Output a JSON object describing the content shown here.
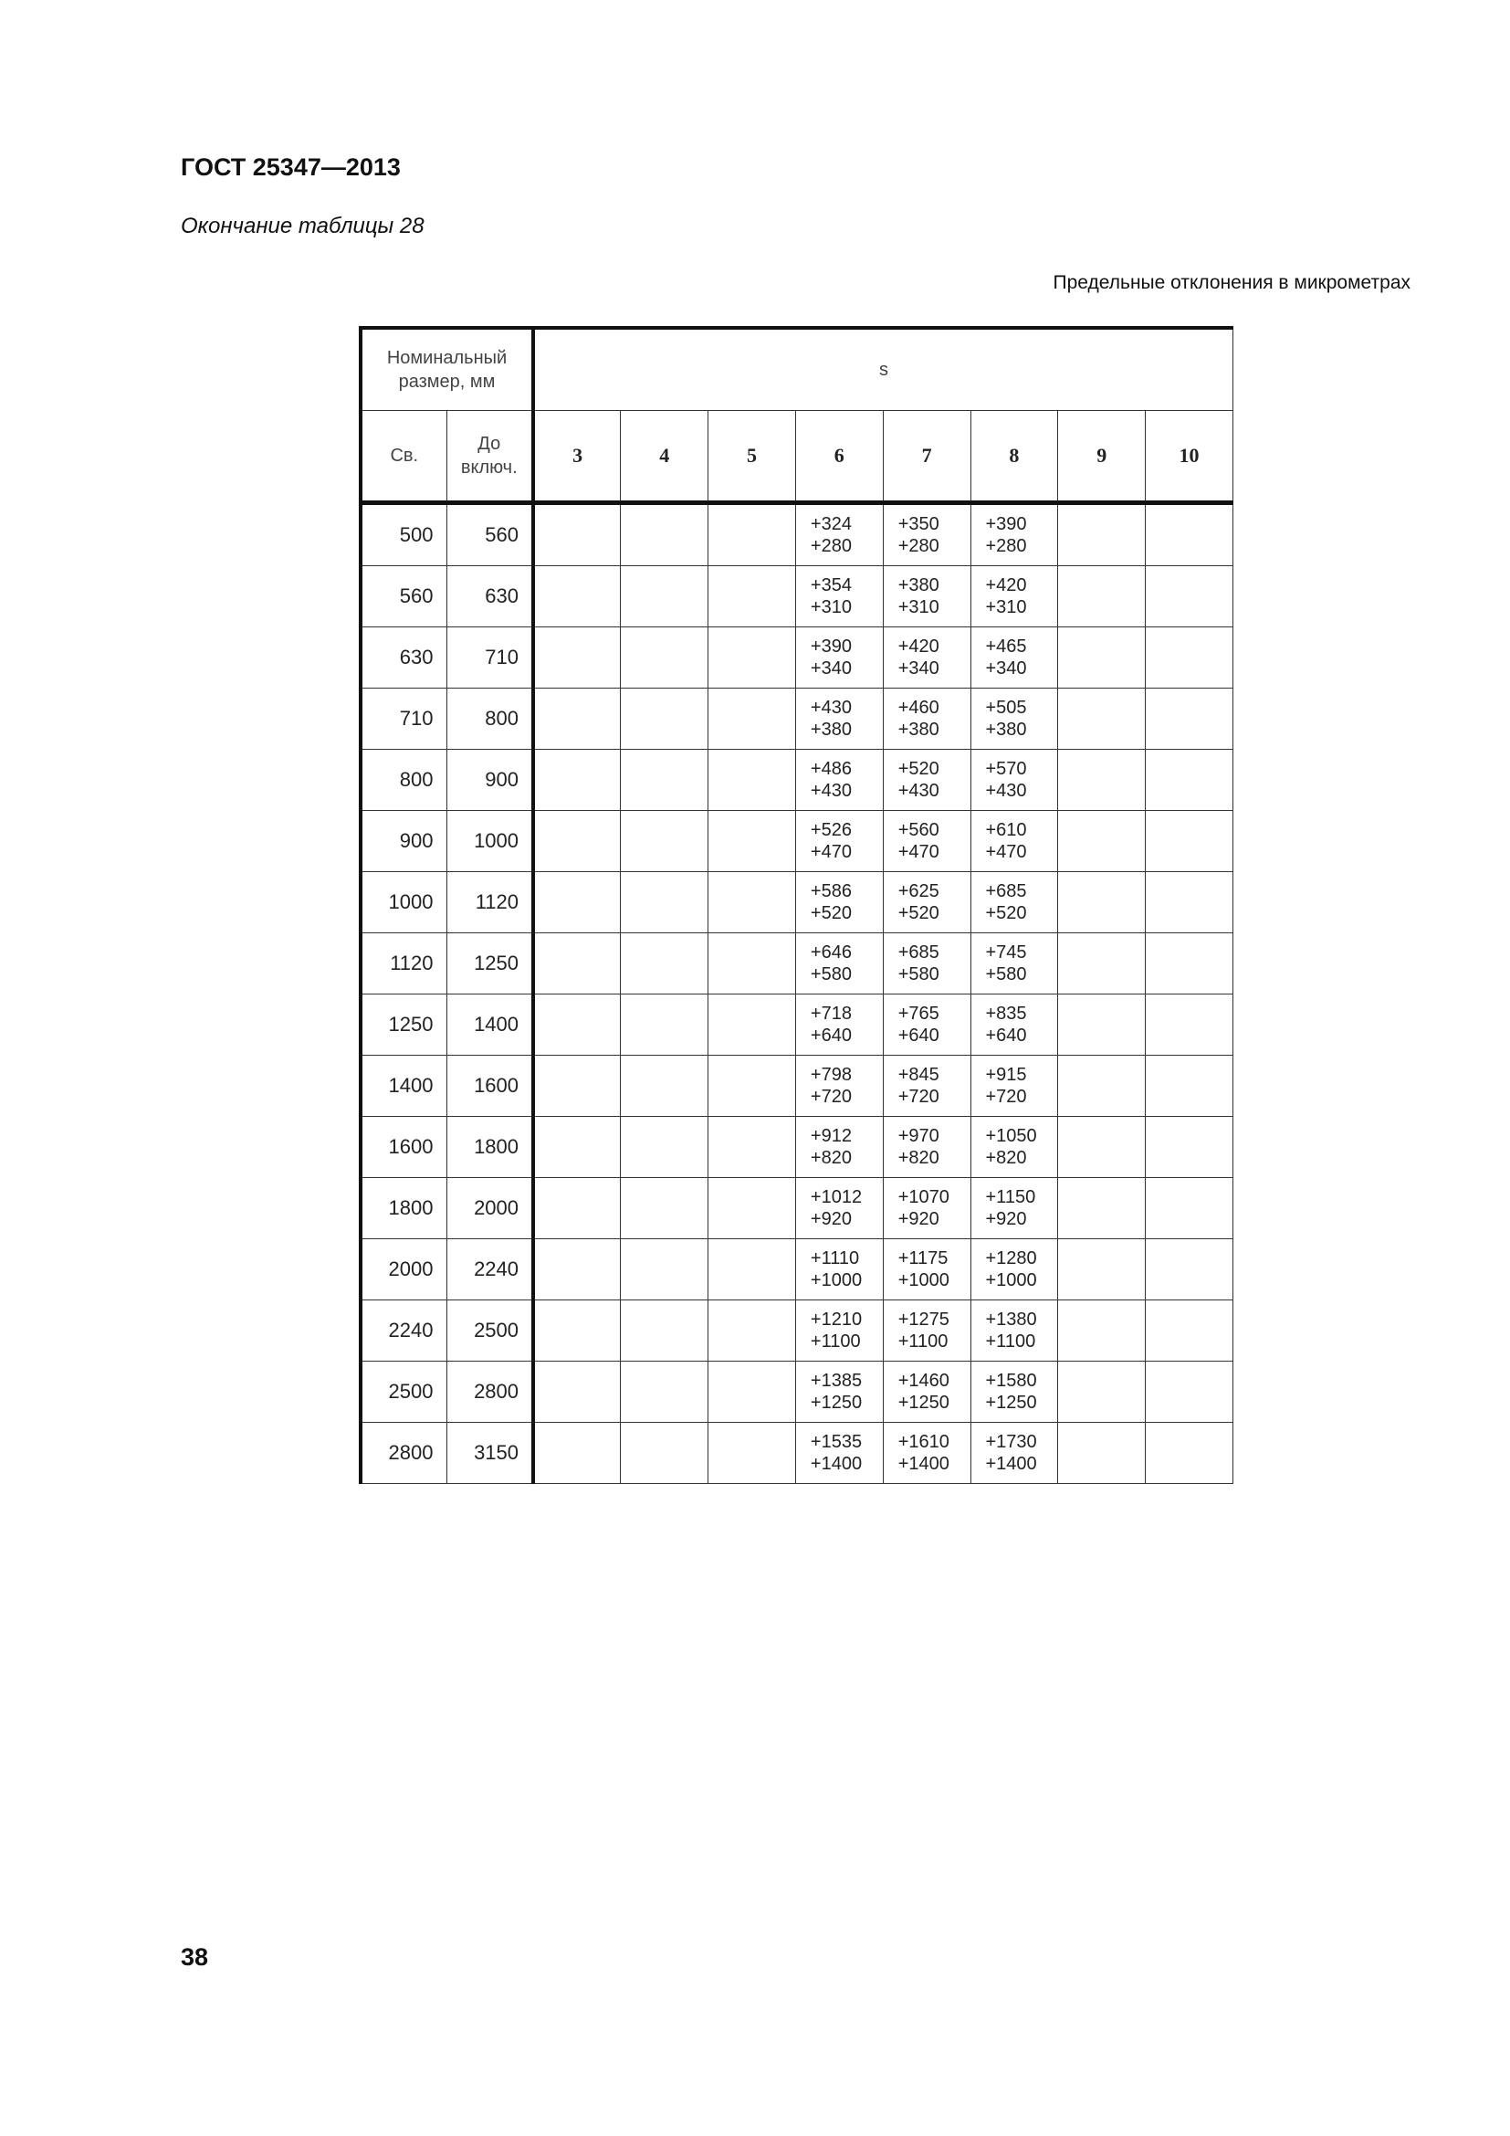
{
  "header": {
    "title": "ГОСТ 25347—2013",
    "subtitle": "Окончание таблицы 28",
    "note": "Предельные отклонения в микрометрах"
  },
  "table": {
    "nominal_header": "Номинальный размер, мм",
    "from_header": "Св.",
    "to_header": "До включ.",
    "field_header": "s",
    "grades": [
      "3",
      "4",
      "5",
      "6",
      "7",
      "8",
      "9",
      "10"
    ],
    "rows": [
      {
        "from": "500",
        "to": "560",
        "values": {
          "6": [
            "+324",
            "+280"
          ],
          "7": [
            "+350",
            "+280"
          ],
          "8": [
            "+390",
            "+280"
          ]
        }
      },
      {
        "from": "560",
        "to": "630",
        "values": {
          "6": [
            "+354",
            "+310"
          ],
          "7": [
            "+380",
            "+310"
          ],
          "8": [
            "+420",
            "+310"
          ]
        }
      },
      {
        "from": "630",
        "to": "710",
        "values": {
          "6": [
            "+390",
            "+340"
          ],
          "7": [
            "+420",
            "+340"
          ],
          "8": [
            "+465",
            "+340"
          ]
        }
      },
      {
        "from": "710",
        "to": "800",
        "values": {
          "6": [
            "+430",
            "+380"
          ],
          "7": [
            "+460",
            "+380"
          ],
          "8": [
            "+505",
            "+380"
          ]
        }
      },
      {
        "from": "800",
        "to": "900",
        "values": {
          "6": [
            "+486",
            "+430"
          ],
          "7": [
            "+520",
            "+430"
          ],
          "8": [
            "+570",
            "+430"
          ]
        }
      },
      {
        "from": "900",
        "to": "1000",
        "values": {
          "6": [
            "+526",
            "+470"
          ],
          "7": [
            "+560",
            "+470"
          ],
          "8": [
            "+610",
            "+470"
          ]
        }
      },
      {
        "from": "1000",
        "to": "1120",
        "values": {
          "6": [
            "+586",
            "+520"
          ],
          "7": [
            "+625",
            "+520"
          ],
          "8": [
            "+685",
            "+520"
          ]
        }
      },
      {
        "from": "1120",
        "to": "1250",
        "values": {
          "6": [
            "+646",
            "+580"
          ],
          "7": [
            "+685",
            "+580"
          ],
          "8": [
            "+745",
            "+580"
          ]
        }
      },
      {
        "from": "1250",
        "to": "1400",
        "values": {
          "6": [
            "+718",
            "+640"
          ],
          "7": [
            "+765",
            "+640"
          ],
          "8": [
            "+835",
            "+640"
          ]
        }
      },
      {
        "from": "1400",
        "to": "1600",
        "values": {
          "6": [
            "+798",
            "+720"
          ],
          "7": [
            "+845",
            "+720"
          ],
          "8": [
            "+915",
            "+720"
          ]
        }
      },
      {
        "from": "1600",
        "to": "1800",
        "values": {
          "6": [
            "+912",
            "+820"
          ],
          "7": [
            "+970",
            "+820"
          ],
          "8": [
            "+1050",
            "+820"
          ]
        }
      },
      {
        "from": "1800",
        "to": "2000",
        "values": {
          "6": [
            "+1012",
            "+920"
          ],
          "7": [
            "+1070",
            "+920"
          ],
          "8": [
            "+1150",
            "+920"
          ]
        }
      },
      {
        "from": "2000",
        "to": "2240",
        "values": {
          "6": [
            "+1110",
            "+1000"
          ],
          "7": [
            "+1175",
            "+1000"
          ],
          "8": [
            "+1280",
            "+1000"
          ]
        }
      },
      {
        "from": "2240",
        "to": "2500",
        "values": {
          "6": [
            "+1210",
            "+1100"
          ],
          "7": [
            "+1275",
            "+1100"
          ],
          "8": [
            "+1380",
            "+1100"
          ]
        }
      },
      {
        "from": "2500",
        "to": "2800",
        "values": {
          "6": [
            "+1385",
            "+1250"
          ],
          "7": [
            "+1460",
            "+1250"
          ],
          "8": [
            "+1580",
            "+1250"
          ]
        }
      },
      {
        "from": "2800",
        "to": "3150",
        "values": {
          "6": [
            "+1535",
            "+1400"
          ],
          "7": [
            "+1610",
            "+1400"
          ],
          "8": [
            "+1730",
            "+1400"
          ]
        }
      }
    ]
  },
  "footer": {
    "page_number": "38"
  }
}
